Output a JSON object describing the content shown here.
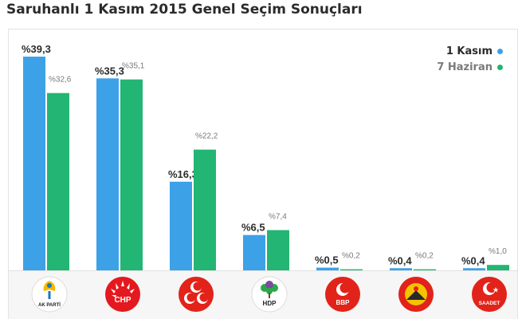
{
  "title": "Saruhanlı 1 Kasım 2015 Genel Seçim Sonuçları",
  "colors": {
    "nov": "#3da1e8",
    "jun": "#22b573"
  },
  "chart_data": {
    "type": "bar",
    "categories": [
      "AK PARTİ",
      "CHP",
      "MHP",
      "HDP",
      "BBP",
      "VATAN",
      "SAADET"
    ],
    "series": [
      {
        "name": "1 Kasım",
        "values": [
          39.3,
          35.3,
          16.3,
          6.5,
          0.5,
          0.4,
          0.4
        ],
        "labels": [
          "%39,3",
          "%35,3",
          "%16,3",
          "%6,5",
          "%0,5",
          "%0,4",
          "%0,4"
        ]
      },
      {
        "name": "7 Haziran",
        "values": [
          32.6,
          35.1,
          22.2,
          7.4,
          0.2,
          0.2,
          1.0
        ],
        "labels": [
          "%32,6",
          "%35,1",
          "%22,2",
          "%7,4",
          "%0,2",
          "%0,2",
          "%1,0"
        ]
      }
    ],
    "ylim": [
      0,
      39.3
    ],
    "grid": false,
    "legend_position": "top-right"
  },
  "logos": [
    {
      "party": "AK PARTİ",
      "icon": "akparti-logo-icon",
      "text": "AK PARTİ"
    },
    {
      "party": "CHP",
      "icon": "chp-logo-icon",
      "text": "CHP"
    },
    {
      "party": "MHP",
      "icon": "mhp-logo-icon",
      "text": ""
    },
    {
      "party": "HDP",
      "icon": "hdp-logo-icon",
      "text": "HDP"
    },
    {
      "party": "BBP",
      "icon": "bbp-logo-icon",
      "text": "BBP"
    },
    {
      "party": "VATAN",
      "icon": "vatan-logo-icon",
      "text": ""
    },
    {
      "party": "SAADET",
      "icon": "saadet-logo-icon",
      "text": "SAADET"
    }
  ]
}
